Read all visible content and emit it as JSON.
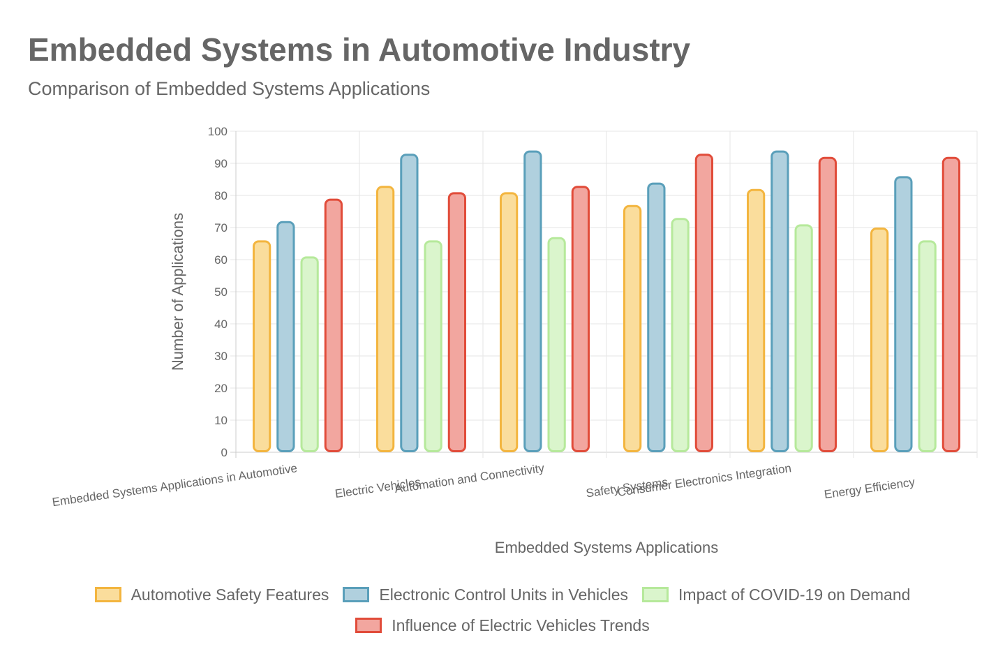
{
  "header": {
    "title": "Embedded Systems in Automotive Industry",
    "subtitle": "Comparison of Embedded Systems Applications"
  },
  "chart_data": {
    "type": "bar",
    "title": "Embedded Systems in Automotive Industry",
    "subtitle": "Comparison of Embedded Systems Applications",
    "xlabel": "Embedded Systems Applications",
    "ylabel": "Number of Applications",
    "ylim": [
      0,
      100
    ],
    "yticks": [
      0,
      10,
      20,
      30,
      40,
      50,
      60,
      70,
      80,
      90,
      100
    ],
    "grid": true,
    "legend_position": "bottom",
    "categories": [
      "Embedded Systems Applications in Automotive",
      "Electric Vehicles",
      "Automation and Connectivity",
      "Safety Systems",
      "Consumer Electronics Integration",
      "Energy Efficiency"
    ],
    "series": [
      {
        "name": "Automotive Safety Features",
        "values": [
          66,
          83,
          81,
          77,
          82,
          70
        ],
        "fill": "#fadd9c",
        "stroke": "#f3b53f"
      },
      {
        "name": "Electronic Control Units in Vehicles",
        "values": [
          72,
          93,
          94,
          84,
          94,
          86
        ],
        "fill": "#b0d0de",
        "stroke": "#5a9fba"
      },
      {
        "name": "Impact of COVID-19 on Demand",
        "values": [
          61,
          66,
          67,
          73,
          71,
          66
        ],
        "fill": "#daf5cc",
        "stroke": "#b6e99b"
      },
      {
        "name": "Influence of Electric Vehicles Trends",
        "values": [
          79,
          81,
          83,
          93,
          92,
          92
        ],
        "fill": "#f2a69f",
        "stroke": "#e14c3a"
      }
    ]
  }
}
